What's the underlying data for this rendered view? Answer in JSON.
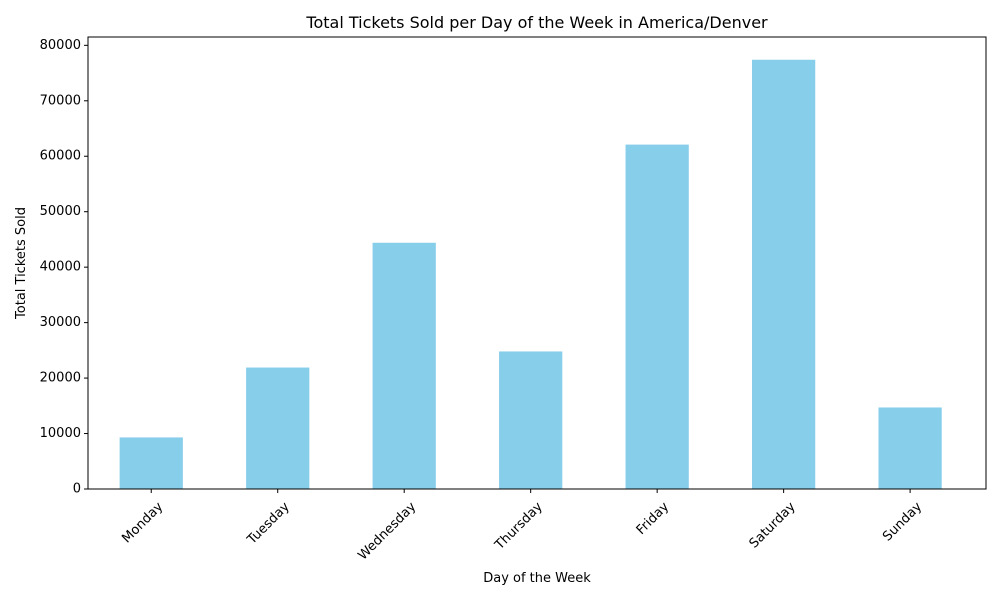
{
  "chart_data": {
    "type": "bar",
    "title": "Total Tickets Sold per Day of the Week in America/Denver",
    "xlabel": "Day of the Week",
    "ylabel": "Total Tickets Sold",
    "categories": [
      "Monday",
      "Tuesday",
      "Wednesday",
      "Thursday",
      "Friday",
      "Saturday",
      "Sunday"
    ],
    "values": [
      9300,
      21900,
      44400,
      24800,
      62100,
      77400,
      14700
    ],
    "ylim": [
      0,
      81500
    ],
    "yticks": [
      0,
      10000,
      20000,
      30000,
      40000,
      50000,
      60000,
      70000,
      80000
    ],
    "ytick_labels": [
      "0",
      "10000",
      "20000",
      "30000",
      "40000",
      "50000",
      "60000",
      "70000",
      "80000"
    ],
    "bar_color": "#87ceeb",
    "grid": false,
    "legend": "none"
  }
}
